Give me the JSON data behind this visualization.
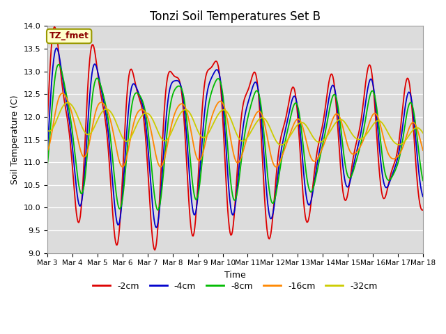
{
  "title": "Tonzi Soil Temperatures Set B",
  "xlabel": "Time",
  "ylabel": "Soil Temperature (C)",
  "ylim": [
    9.0,
    14.0
  ],
  "yticks": [
    9.0,
    9.5,
    10.0,
    10.5,
    11.0,
    11.5,
    12.0,
    12.5,
    13.0,
    13.5,
    14.0
  ],
  "x_labels": [
    "Mar 3",
    "Mar 4",
    "Mar 5",
    "Mar 6",
    "Mar 7",
    "Mar 8",
    "Mar 9",
    "Mar 10",
    "Mar 11",
    "Mar 12",
    "Mar 13",
    "Mar 14",
    "Mar 15",
    "Mar 16",
    "Mar 17",
    "Mar 18"
  ],
  "colors": {
    "-2cm": "#dd0000",
    "-4cm": "#0000cc",
    "-8cm": "#00bb00",
    "-16cm": "#ff8800",
    "-32cm": "#cccc00"
  },
  "legend_label": "TZ_fmet",
  "background_color": "#dcdcdc",
  "grid_color": "#ffffff"
}
